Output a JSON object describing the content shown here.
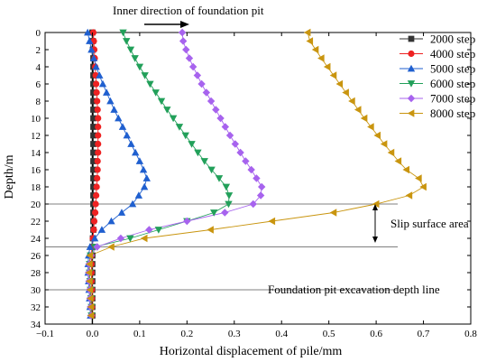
{
  "chart_data": {
    "type": "line",
    "title": "",
    "xlabel": "Horizontal displacement of pile/mm",
    "ylabel": "Depth/m",
    "xlim": [
      -0.1,
      0.8
    ],
    "ylim": [
      0,
      34
    ],
    "y_inverted": true,
    "x_ticks": [
      -0.1,
      0.0,
      0.1,
      0.2,
      0.3,
      0.4,
      0.5,
      0.6,
      0.7,
      0.8
    ],
    "x_tick_labels": [
      "−0.1",
      "0.0",
      "0.1",
      "0.2",
      "0.3",
      "0.4",
      "0.5",
      "0.6",
      "0.7",
      "0.8"
    ],
    "y_ticks": [
      0,
      2,
      4,
      6,
      8,
      10,
      12,
      14,
      16,
      18,
      20,
      22,
      24,
      26,
      28,
      30,
      32,
      34
    ],
    "y_tick_labels": [
      "0",
      "2",
      "4",
      "6",
      "8",
      "10",
      "12",
      "14",
      "16",
      "18",
      "20",
      "22",
      "24",
      "26",
      "28",
      "30",
      "32",
      "34"
    ],
    "grid": false,
    "legend_position": "top-right",
    "series": [
      {
        "name": "2000 step",
        "color": "#333333",
        "marker": "square",
        "points": [
          [
            0.0,
            0
          ],
          [
            0.001,
            1
          ],
          [
            0.001,
            2
          ],
          [
            0.002,
            3
          ],
          [
            0.002,
            4
          ],
          [
            0.002,
            5
          ],
          [
            0.002,
            6
          ],
          [
            0.002,
            7
          ],
          [
            0.002,
            8
          ],
          [
            0.002,
            9
          ],
          [
            0.002,
            10
          ],
          [
            0.002,
            11
          ],
          [
            0.002,
            12
          ],
          [
            0.002,
            13
          ],
          [
            0.002,
            14
          ],
          [
            0.002,
            15
          ],
          [
            0.002,
            16
          ],
          [
            0.002,
            17
          ],
          [
            0.002,
            18
          ],
          [
            0.002,
            19
          ],
          [
            0.002,
            20
          ],
          [
            0.002,
            21
          ],
          [
            0.002,
            22
          ],
          [
            0.002,
            23
          ],
          [
            0.001,
            24
          ],
          [
            0.0,
            25
          ],
          [
            0.0,
            26
          ],
          [
            0.0,
            27
          ],
          [
            0.0,
            28
          ],
          [
            0.0,
            29
          ],
          [
            0.0,
            30
          ],
          [
            0.0,
            31
          ],
          [
            0.0,
            32
          ],
          [
            0.0,
            33
          ]
        ]
      },
      {
        "name": "4000 step",
        "color": "#ee2222",
        "marker": "circle",
        "points": [
          [
            0.002,
            0
          ],
          [
            0.003,
            1
          ],
          [
            0.004,
            2
          ],
          [
            0.005,
            3
          ],
          [
            0.006,
            4
          ],
          [
            0.007,
            5
          ],
          [
            0.008,
            6
          ],
          [
            0.009,
            7
          ],
          [
            0.01,
            8
          ],
          [
            0.011,
            9
          ],
          [
            0.012,
            10
          ],
          [
            0.012,
            11
          ],
          [
            0.012,
            12
          ],
          [
            0.012,
            13
          ],
          [
            0.012,
            14
          ],
          [
            0.011,
            15
          ],
          [
            0.011,
            16
          ],
          [
            0.01,
            17
          ],
          [
            0.009,
            18
          ],
          [
            0.008,
            19
          ],
          [
            0.007,
            20
          ],
          [
            0.006,
            21
          ],
          [
            0.004,
            22
          ],
          [
            0.003,
            23
          ],
          [
            0.001,
            24
          ],
          [
            -0.001,
            25
          ],
          [
            -0.002,
            26
          ],
          [
            -0.002,
            27
          ],
          [
            -0.002,
            28
          ],
          [
            -0.002,
            29
          ],
          [
            -0.001,
            30
          ],
          [
            -0.001,
            31
          ],
          [
            -0.001,
            32
          ],
          [
            -0.001,
            33
          ]
        ]
      },
      {
        "name": "5000 step",
        "color": "#1f5fcf",
        "marker": "triangle-up",
        "points": [
          [
            -0.01,
            0
          ],
          [
            -0.006,
            1
          ],
          [
            -0.002,
            2
          ],
          [
            0.003,
            3
          ],
          [
            0.008,
            4
          ],
          [
            0.015,
            5
          ],
          [
            0.022,
            6
          ],
          [
            0.03,
            7
          ],
          [
            0.038,
            8
          ],
          [
            0.046,
            9
          ],
          [
            0.055,
            10
          ],
          [
            0.064,
            11
          ],
          [
            0.073,
            12
          ],
          [
            0.082,
            13
          ],
          [
            0.091,
            14
          ],
          [
            0.1,
            15
          ],
          [
            0.108,
            16
          ],
          [
            0.115,
            17
          ],
          [
            0.11,
            18
          ],
          [
            0.098,
            19
          ],
          [
            0.085,
            20
          ],
          [
            0.062,
            21
          ],
          [
            0.04,
            22
          ],
          [
            0.02,
            23
          ],
          [
            0.005,
            24
          ],
          [
            -0.005,
            25
          ],
          [
            -0.008,
            26
          ],
          [
            -0.009,
            27
          ],
          [
            -0.009,
            28
          ],
          [
            -0.008,
            29
          ],
          [
            -0.007,
            30
          ],
          [
            -0.006,
            31
          ],
          [
            -0.005,
            32
          ],
          [
            -0.004,
            33
          ]
        ]
      },
      {
        "name": "6000 step",
        "color": "#22a05a",
        "marker": "triangle-down",
        "points": [
          [
            0.065,
            0
          ],
          [
            0.072,
            1
          ],
          [
            0.081,
            2
          ],
          [
            0.09,
            3
          ],
          [
            0.1,
            4
          ],
          [
            0.111,
            5
          ],
          [
            0.122,
            6
          ],
          [
            0.134,
            7
          ],
          [
            0.146,
            8
          ],
          [
            0.158,
            9
          ],
          [
            0.171,
            10
          ],
          [
            0.184,
            11
          ],
          [
            0.197,
            12
          ],
          [
            0.21,
            13
          ],
          [
            0.223,
            14
          ],
          [
            0.237,
            15
          ],
          [
            0.252,
            16
          ],
          [
            0.268,
            17
          ],
          [
            0.283,
            18
          ],
          [
            0.289,
            19
          ],
          [
            0.288,
            20
          ],
          [
            0.257,
            21
          ],
          [
            0.2,
            22
          ],
          [
            0.14,
            23
          ],
          [
            0.08,
            24
          ],
          [
            0.005,
            25
          ],
          [
            -0.004,
            26
          ],
          [
            -0.006,
            27
          ],
          [
            -0.006,
            28
          ],
          [
            -0.005,
            29
          ],
          [
            -0.004,
            30
          ],
          [
            -0.003,
            31
          ],
          [
            -0.002,
            32
          ],
          [
            -0.002,
            33
          ]
        ]
      },
      {
        "name": "7000 step",
        "color": "#a763ee",
        "marker": "diamond",
        "points": [
          [
            0.19,
            0
          ],
          [
            0.192,
            1
          ],
          [
            0.198,
            2
          ],
          [
            0.205,
            3
          ],
          [
            0.213,
            4
          ],
          [
            0.222,
            5
          ],
          [
            0.231,
            6
          ],
          [
            0.241,
            7
          ],
          [
            0.251,
            8
          ],
          [
            0.261,
            9
          ],
          [
            0.271,
            10
          ],
          [
            0.281,
            11
          ],
          [
            0.291,
            12
          ],
          [
            0.302,
            13
          ],
          [
            0.313,
            14
          ],
          [
            0.324,
            15
          ],
          [
            0.336,
            16
          ],
          [
            0.347,
            17
          ],
          [
            0.358,
            18
          ],
          [
            0.356,
            19
          ],
          [
            0.34,
            20
          ],
          [
            0.28,
            21
          ],
          [
            0.2,
            22
          ],
          [
            0.12,
            23
          ],
          [
            0.06,
            24
          ],
          [
            0.01,
            25
          ],
          [
            -0.003,
            26
          ],
          [
            -0.007,
            27
          ],
          [
            -0.008,
            28
          ],
          [
            -0.007,
            29
          ],
          [
            -0.006,
            30
          ],
          [
            -0.005,
            31
          ],
          [
            -0.004,
            32
          ],
          [
            -0.003,
            33
          ]
        ]
      },
      {
        "name": "8000 step",
        "color": "#c9950f",
        "marker": "triangle-left",
        "points": [
          [
            0.455,
            0
          ],
          [
            0.46,
            1
          ],
          [
            0.472,
            2
          ],
          [
            0.484,
            3
          ],
          [
            0.497,
            4
          ],
          [
            0.51,
            5
          ],
          [
            0.523,
            6
          ],
          [
            0.536,
            7
          ],
          [
            0.549,
            8
          ],
          [
            0.562,
            9
          ],
          [
            0.575,
            10
          ],
          [
            0.589,
            11
          ],
          [
            0.603,
            12
          ],
          [
            0.617,
            13
          ],
          [
            0.632,
            14
          ],
          [
            0.647,
            15
          ],
          [
            0.664,
            16
          ],
          [
            0.69,
            17
          ],
          [
            0.7,
            18
          ],
          [
            0.67,
            19
          ],
          [
            0.6,
            20
          ],
          [
            0.51,
            21
          ],
          [
            0.38,
            22
          ],
          [
            0.25,
            23
          ],
          [
            0.11,
            24
          ],
          [
            0.04,
            25
          ],
          [
            -0.005,
            26
          ],
          [
            -0.006,
            27
          ],
          [
            -0.007,
            28
          ],
          [
            -0.006,
            29
          ],
          [
            -0.005,
            30
          ],
          [
            -0.004,
            31
          ],
          [
            -0.003,
            32
          ],
          [
            -0.003,
            33
          ]
        ]
      }
    ],
    "reference_lines": [
      {
        "depth": 20,
        "color": "#555555"
      },
      {
        "depth": 25,
        "color": "#555555"
      },
      {
        "depth": 30,
        "color": "#555555"
      }
    ],
    "annotations": {
      "inner_direction": "Inner direction of foundation pit",
      "slip_area": "Slip surface area",
      "excavation_line": "Foundation pit excavation depth line"
    }
  }
}
